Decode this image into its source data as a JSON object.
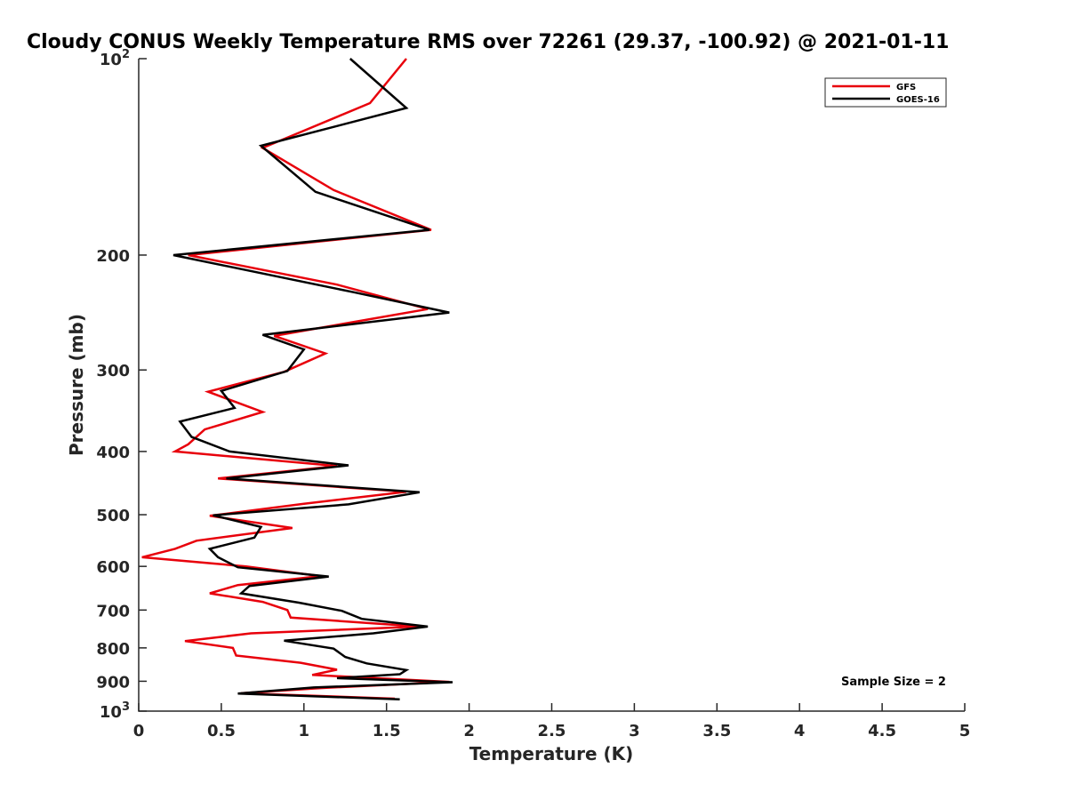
{
  "chart_data": {
    "type": "line",
    "title": "Cloudy CONUS Weekly Temperature RMS over 72261 (29.37, -100.92) @ 2021-01-11",
    "xlabel": "Temperature (K)",
    "ylabel": "Pressure (mb)",
    "xlim": [
      0,
      5
    ],
    "ylim": [
      100,
      1000
    ],
    "y_scale": "log",
    "y_reversed": true,
    "grid": false,
    "legend_position": "top-right",
    "x_ticks": [
      "0",
      "0.5",
      "1",
      "1.5",
      "2",
      "2.5",
      "3",
      "3.5",
      "4",
      "4.5",
      "5"
    ],
    "y_ticks": [
      {
        "value": 100,
        "base": "10",
        "exp": "2"
      },
      {
        "value": 200,
        "label": "200"
      },
      {
        "value": 300,
        "label": "300"
      },
      {
        "value": 400,
        "label": "400"
      },
      {
        "value": 500,
        "label": "500"
      },
      {
        "value": 600,
        "label": "600"
      },
      {
        "value": 700,
        "label": "700"
      },
      {
        "value": 800,
        "label": "800"
      },
      {
        "value": 900,
        "label": "900"
      },
      {
        "value": 1000,
        "base": "10",
        "exp": "3"
      }
    ],
    "series": [
      {
        "name": "GFS",
        "color": "#e8000b",
        "points": [
          [
            1.62,
            100
          ],
          [
            1.4,
            117
          ],
          [
            0.75,
            137
          ],
          [
            1.18,
            159
          ],
          [
            1.77,
            183
          ],
          [
            0.3,
            200
          ],
          [
            1.2,
            222
          ],
          [
            1.75,
            242
          ],
          [
            0.82,
            266
          ],
          [
            1.13,
            283
          ],
          [
            0.88,
            302
          ],
          [
            0.42,
            324
          ],
          [
            0.75,
            348
          ],
          [
            0.4,
            370
          ],
          [
            0.3,
            390
          ],
          [
            0.22,
            400
          ],
          [
            1.2,
            421
          ],
          [
            0.48,
            440
          ],
          [
            1.62,
            461
          ],
          [
            1.0,
            481
          ],
          [
            0.43,
            502
          ],
          [
            0.93,
            524
          ],
          [
            0.35,
            548
          ],
          [
            0.22,
            564
          ],
          [
            0.02,
            581
          ],
          [
            0.65,
            600
          ],
          [
            1.1,
            621
          ],
          [
            0.6,
            641
          ],
          [
            0.43,
            660
          ],
          [
            0.75,
            680
          ],
          [
            0.9,
            700
          ],
          [
            0.92,
            719
          ],
          [
            1.7,
            742
          ],
          [
            0.68,
            760
          ],
          [
            0.28,
            781
          ],
          [
            0.57,
            800
          ],
          [
            0.59,
            822
          ],
          [
            0.98,
            843
          ],
          [
            1.2,
            864
          ],
          [
            1.05,
            880
          ],
          [
            1.88,
            902
          ],
          [
            1.1,
            922
          ],
          [
            0.62,
            939
          ],
          [
            1.55,
            957
          ]
        ]
      },
      {
        "name": "GOES-16",
        "color": "#000000",
        "points": [
          [
            1.28,
            100
          ],
          [
            1.62,
            119
          ],
          [
            0.74,
            136
          ],
          [
            1.07,
            160
          ],
          [
            1.76,
            183
          ],
          [
            0.21,
            200
          ],
          [
            1.3,
            228
          ],
          [
            1.88,
            245
          ],
          [
            0.75,
            265
          ],
          [
            1.0,
            279
          ],
          [
            0.9,
            301
          ],
          [
            0.5,
            323
          ],
          [
            0.58,
            343
          ],
          [
            0.25,
            360
          ],
          [
            0.32,
            380
          ],
          [
            0.55,
            400
          ],
          [
            1.27,
            420
          ],
          [
            0.53,
            440
          ],
          [
            1.7,
            462
          ],
          [
            1.27,
            482
          ],
          [
            0.45,
            501
          ],
          [
            0.74,
            522
          ],
          [
            0.7,
            542
          ],
          [
            0.43,
            564
          ],
          [
            0.48,
            581
          ],
          [
            0.6,
            602
          ],
          [
            1.15,
            622
          ],
          [
            0.67,
            643
          ],
          [
            0.62,
            660
          ],
          [
            0.97,
            682
          ],
          [
            1.23,
            702
          ],
          [
            1.35,
            722
          ],
          [
            1.75,
            742
          ],
          [
            1.42,
            760
          ],
          [
            0.88,
            780
          ],
          [
            1.18,
            802
          ],
          [
            1.25,
            826
          ],
          [
            1.38,
            845
          ],
          [
            1.62,
            865
          ],
          [
            1.58,
            878
          ],
          [
            1.2,
            890
          ],
          [
            1.9,
            903
          ],
          [
            1.06,
            920
          ],
          [
            0.6,
            940
          ],
          [
            1.58,
            959
          ]
        ]
      }
    ],
    "annotations": [
      {
        "text": "Sample Size = 2",
        "position": "bottom-right"
      }
    ]
  }
}
